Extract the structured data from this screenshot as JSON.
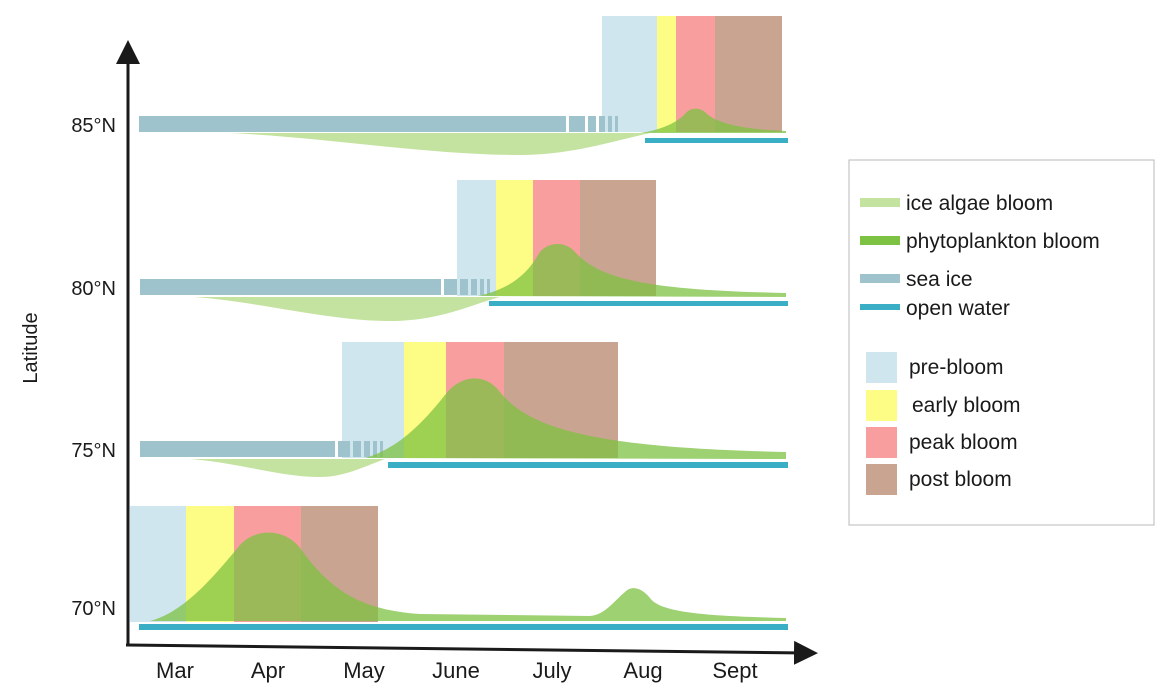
{
  "colors": {
    "ice_algae": "#c5e3a0",
    "phytoplankton": "#7dc242",
    "sea_ice": "#9fc3cc",
    "open_water": "#3aaec4",
    "pre_bloom": "#cfe6ef",
    "early_bloom": "#fdfc85",
    "peak_bloom": "#f89e9e",
    "post_bloom": "#c9a490",
    "axis": "#1a1a1a"
  },
  "axes": {
    "y_title": "Latitude",
    "months": [
      "Mar",
      "Apr",
      "May",
      "June",
      "July",
      "Aug",
      "Sept"
    ],
    "latitudes": [
      "85°N",
      "80°N",
      "75°N",
      "70°N"
    ]
  },
  "legend": {
    "lines": [
      {
        "label": "ice algae bloom",
        "color_key": "ice_algae"
      },
      {
        "label": "phytoplankton bloom",
        "color_key": "phytoplankton"
      },
      {
        "label": "sea ice",
        "color_key": "sea_ice"
      },
      {
        "label": "open water",
        "color_key": "open_water"
      }
    ],
    "phases": [
      {
        "label": "pre-bloom",
        "color_key": "pre_bloom"
      },
      {
        "label": "early bloom",
        "color_key": "early_bloom"
      },
      {
        "label": "peak bloom",
        "color_key": "peak_bloom"
      },
      {
        "label": "post bloom",
        "color_key": "post_bloom"
      }
    ]
  }
}
